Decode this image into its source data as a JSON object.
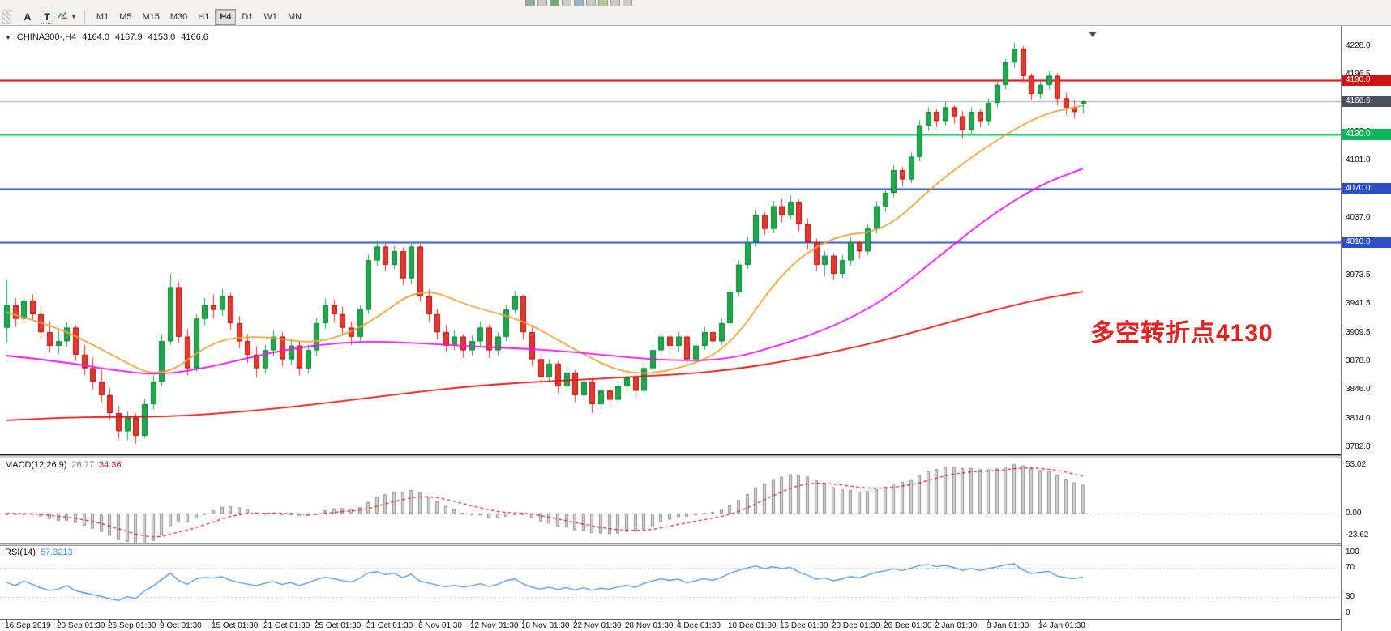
{
  "toolbar": {
    "tools": [
      {
        "label": "A"
      },
      {
        "label": "T"
      }
    ],
    "timeframes": [
      {
        "label": "M1",
        "active": false
      },
      {
        "label": "M5",
        "active": false
      },
      {
        "label": "M15",
        "active": false
      },
      {
        "label": "M30",
        "active": false
      },
      {
        "label": "H1",
        "active": false
      },
      {
        "label": "H4",
        "active": true
      },
      {
        "label": "D1",
        "active": false
      },
      {
        "label": "W1",
        "active": false
      },
      {
        "label": "MN",
        "active": false
      }
    ]
  },
  "chart": {
    "title": {
      "expander": "▼",
      "symbol_period": "CHINA300-,H4",
      "open": "4164.0",
      "high": "4167.9",
      "low": "4153.0",
      "close": "4166.6"
    },
    "annotation": {
      "text": "多空转折点4130",
      "color": "#e32222"
    }
  },
  "macd_panel": {
    "label": "MACD(12,26,9)",
    "main_value": "26.77",
    "signal_value": "34.36"
  },
  "rsi_panel": {
    "label": "RSI(14)",
    "value": "57.3213"
  },
  "chart_data": {
    "type": "candlestick",
    "symbol": "CHINA300-",
    "timeframe": "H4",
    "ylim": [
      3775,
      4247
    ],
    "up_color": "#1fa94e",
    "up_border": "#0c7c34",
    "down_color": "#e8372c",
    "down_border": "#a31515",
    "y_ticks": [
      {
        "label": "4228.0",
        "value": 4228.0
      },
      {
        "label": "4196.5",
        "value": 4196.5
      },
      {
        "label": "4165.0",
        "value": 4165.0
      },
      {
        "label": "4133.0",
        "value": 4133.0
      },
      {
        "label": "4101.0",
        "value": 4101.0
      },
      {
        "label": "4069.0",
        "value": 4069.0
      },
      {
        "label": "4037.0",
        "value": 4037.0
      },
      {
        "label": "4005.5",
        "value": 4005.5
      },
      {
        "label": "3973.5",
        "value": 3973.5
      },
      {
        "label": "3941.5",
        "value": 3941.5
      },
      {
        "label": "3909.5",
        "value": 3909.5
      },
      {
        "label": "3878.0",
        "value": 3878.0
      },
      {
        "label": "3846.0",
        "value": 3846.0
      },
      {
        "label": "3814.0",
        "value": 3814.0
      },
      {
        "label": "3782.0",
        "value": 3782.0
      }
    ],
    "hlines": [
      {
        "price": 4190.0,
        "color": "#d40000",
        "width": 2
      },
      {
        "price": 4130.0,
        "color": "#00cf5e",
        "width": 2
      },
      {
        "price": 4070.0,
        "color": "#2d50c8",
        "width": 2
      },
      {
        "price": 4010.0,
        "color": "#2d50c8",
        "width": 2
      }
    ],
    "current_price": {
      "price": 4166.6,
      "label": "4166.6",
      "line_color": "#9aa8b8",
      "badge_color": "#49525c"
    },
    "badges": [
      {
        "label": "4190.0",
        "value": 4190.0,
        "color": "#cf1212"
      },
      {
        "label": "4130.0",
        "value": 4130.0,
        "color": "#0bb65a"
      },
      {
        "label": "4070.0",
        "value": 4070.0,
        "color": "#2d50c8"
      },
      {
        "label": "4010.0",
        "value": 4010.0,
        "color": "#2d50c8"
      },
      {
        "label": "4166.6",
        "value": 4166.6,
        "color": "#49525c"
      }
    ],
    "x_labels": [
      {
        "index": 0,
        "label": "16 Sep 2019"
      },
      {
        "index": 6,
        "label": "20 Sep 01:30"
      },
      {
        "index": 12,
        "label": "26 Sep 01:30"
      },
      {
        "index": 18,
        "label": "9 Oct 01:30"
      },
      {
        "index": 24,
        "label": "15 Oct 01:30"
      },
      {
        "index": 30,
        "label": "21 Oct 01:30"
      },
      {
        "index": 36,
        "label": "25 Oct 01:30"
      },
      {
        "index": 42,
        "label": "31 Oct 01:30"
      },
      {
        "index": 48,
        "label": "6 Nov 01:30"
      },
      {
        "index": 54,
        "label": "12 Nov 01:30"
      },
      {
        "index": 60,
        "label": "18 Nov 01:30"
      },
      {
        "index": 66,
        "label": "22 Nov 01:30"
      },
      {
        "index": 72,
        "label": "28 Nov 01:30"
      },
      {
        "index": 78,
        "label": "4 Dec 01:30"
      },
      {
        "index": 84,
        "label": "10 Dec 01:30"
      },
      {
        "index": 90,
        "label": "16 Dec 01:30"
      },
      {
        "index": 96,
        "label": "20 Dec 01:30"
      },
      {
        "index": 102,
        "label": "26 Dec 01:30"
      },
      {
        "index": 108,
        "label": "2 Jan 01:30"
      },
      {
        "index": 114,
        "label": "8 Jan 01:30"
      },
      {
        "index": 120,
        "label": "14 Jan 01:30"
      }
    ],
    "ohlc": [
      [
        3915,
        3968,
        3898,
        3940
      ],
      [
        3940,
        3948,
        3916,
        3925
      ],
      [
        3925,
        3950,
        3920,
        3945
      ],
      [
        3945,
        3952,
        3924,
        3930
      ],
      [
        3930,
        3938,
        3902,
        3910
      ],
      [
        3910,
        3922,
        3888,
        3895
      ],
      [
        3895,
        3912,
        3886,
        3900
      ],
      [
        3900,
        3921,
        3894,
        3915
      ],
      [
        3915,
        3918,
        3878,
        3885
      ],
      [
        3885,
        3896,
        3862,
        3870
      ],
      [
        3870,
        3882,
        3846,
        3855
      ],
      [
        3855,
        3868,
        3832,
        3840
      ],
      [
        3840,
        3848,
        3812,
        3820
      ],
      [
        3820,
        3828,
        3792,
        3800
      ],
      [
        3800,
        3822,
        3790,
        3815
      ],
      [
        3815,
        3820,
        3786,
        3795
      ],
      [
        3795,
        3836,
        3792,
        3830
      ],
      [
        3830,
        3862,
        3824,
        3855
      ],
      [
        3855,
        3908,
        3850,
        3900
      ],
      [
        3900,
        3975,
        3896,
        3960
      ],
      [
        3960,
        3966,
        3898,
        3905
      ],
      [
        3905,
        3914,
        3862,
        3870
      ],
      [
        3870,
        3930,
        3866,
        3925
      ],
      [
        3925,
        3948,
        3918,
        3940
      ],
      [
        3940,
        3952,
        3926,
        3935
      ],
      [
        3935,
        3958,
        3928,
        3950
      ],
      [
        3950,
        3954,
        3912,
        3920
      ],
      [
        3920,
        3928,
        3892,
        3900
      ],
      [
        3900,
        3908,
        3876,
        3885
      ],
      [
        3885,
        3894,
        3860,
        3870
      ],
      [
        3870,
        3896,
        3864,
        3890
      ],
      [
        3890,
        3912,
        3884,
        3905
      ],
      [
        3905,
        3910,
        3872,
        3880
      ],
      [
        3880,
        3902,
        3874,
        3895
      ],
      [
        3895,
        3900,
        3862,
        3870
      ],
      [
        3870,
        3896,
        3864,
        3890
      ],
      [
        3890,
        3926,
        3884,
        3920
      ],
      [
        3920,
        3948,
        3914,
        3940
      ],
      [
        3940,
        3946,
        3922,
        3930
      ],
      [
        3930,
        3938,
        3908,
        3915
      ],
      [
        3915,
        3922,
        3896,
        3905
      ],
      [
        3905,
        3940,
        3900,
        3935
      ],
      [
        3935,
        3996,
        3930,
        3990
      ],
      [
        3990,
        4012,
        3984,
        4005
      ],
      [
        4005,
        4010,
        3978,
        3985
      ],
      [
        3985,
        4006,
        3980,
        4000
      ],
      [
        4000,
        4004,
        3962,
        3970
      ],
      [
        3970,
        4010,
        3964,
        4005
      ],
      [
        4005,
        4008,
        3944,
        3950
      ],
      [
        3950,
        3958,
        3922,
        3930
      ],
      [
        3930,
        3936,
        3902,
        3910
      ],
      [
        3910,
        3918,
        3888,
        3895
      ],
      [
        3895,
        3912,
        3890,
        3905
      ],
      [
        3905,
        3908,
        3882,
        3890
      ],
      [
        3890,
        3906,
        3884,
        3900
      ],
      [
        3900,
        3922,
        3894,
        3915
      ],
      [
        3915,
        3918,
        3882,
        3890
      ],
      [
        3890,
        3910,
        3884,
        3905
      ],
      [
        3905,
        3940,
        3900,
        3935
      ],
      [
        3935,
        3956,
        3930,
        3950
      ],
      [
        3950,
        3952,
        3902,
        3910
      ],
      [
        3910,
        3916,
        3872,
        3880
      ],
      [
        3880,
        3886,
        3852,
        3860
      ],
      [
        3860,
        3880,
        3854,
        3875
      ],
      [
        3875,
        3878,
        3842,
        3850
      ],
      [
        3850,
        3872,
        3844,
        3865
      ],
      [
        3865,
        3868,
        3832,
        3840
      ],
      [
        3840,
        3860,
        3834,
        3855
      ],
      [
        3855,
        3858,
        3820,
        3830
      ],
      [
        3830,
        3850,
        3824,
        3845
      ],
      [
        3845,
        3848,
        3826,
        3835
      ],
      [
        3835,
        3856,
        3830,
        3850
      ],
      [
        3850,
        3866,
        3844,
        3860
      ],
      [
        3860,
        3862,
        3836,
        3845
      ],
      [
        3845,
        3874,
        3840,
        3870
      ],
      [
        3870,
        3896,
        3864,
        3890
      ],
      [
        3890,
        3910,
        3884,
        3905
      ],
      [
        3905,
        3908,
        3886,
        3895
      ],
      [
        3895,
        3910,
        3888,
        3905
      ],
      [
        3905,
        3906,
        3872,
        3880
      ],
      [
        3880,
        3900,
        3874,
        3895
      ],
      [
        3895,
        3916,
        3890,
        3910
      ],
      [
        3910,
        3912,
        3892,
        3900
      ],
      [
        3900,
        3926,
        3896,
        3920
      ],
      [
        3920,
        3960,
        3916,
        3955
      ],
      [
        3955,
        3990,
        3950,
        3985
      ],
      [
        3985,
        4016,
        3980,
        4010
      ],
      [
        4010,
        4046,
        4005,
        4040
      ],
      [
        4040,
        4044,
        4018,
        4025
      ],
      [
        4025,
        4056,
        4020,
        4050
      ],
      [
        4050,
        4058,
        4032,
        4040
      ],
      [
        4040,
        4062,
        4036,
        4055
      ],
      [
        4055,
        4058,
        4022,
        4030
      ],
      [
        4030,
        4036,
        4002,
        4010
      ],
      [
        4010,
        4014,
        3978,
        3985
      ],
      [
        3985,
        4000,
        3972,
        3995
      ],
      [
        3995,
        3998,
        3968,
        3975
      ],
      [
        3975,
        3996,
        3970,
        3990
      ],
      [
        3990,
        4016,
        3984,
        4010
      ],
      [
        4010,
        4012,
        3992,
        4000
      ],
      [
        4000,
        4030,
        3996,
        4025
      ],
      [
        4025,
        4056,
        4020,
        4050
      ],
      [
        4050,
        4070,
        4044,
        4065
      ],
      [
        4065,
        4096,
        4060,
        4090
      ],
      [
        4090,
        4094,
        4072,
        4080
      ],
      [
        4080,
        4110,
        4076,
        4105
      ],
      [
        4105,
        4146,
        4100,
        4140
      ],
      [
        4140,
        4160,
        4134,
        4155
      ],
      [
        4155,
        4158,
        4138,
        4145
      ],
      [
        4145,
        4166,
        4140,
        4160
      ],
      [
        4160,
        4162,
        4142,
        4150
      ],
      [
        4150,
        4156,
        4126,
        4135
      ],
      [
        4135,
        4160,
        4130,
        4155
      ],
      [
        4155,
        4158,
        4138,
        4145
      ],
      [
        4145,
        4170,
        4140,
        4165
      ],
      [
        4165,
        4190,
        4160,
        4185
      ],
      [
        4185,
        4214,
        4180,
        4210
      ],
      [
        4210,
        4232,
        4204,
        4225
      ],
      [
        4225,
        4228,
        4188,
        4195
      ],
      [
        4195,
        4198,
        4168,
        4175
      ],
      [
        4175,
        4190,
        4170,
        4185
      ],
      [
        4185,
        4200,
        4180,
        4195
      ],
      [
        4195,
        4198,
        4162,
        4170
      ],
      [
        4170,
        4176,
        4152,
        4160
      ],
      [
        4160,
        4168,
        4148,
        4155
      ],
      [
        4164,
        4167.9,
        4153,
        4166.6
      ]
    ],
    "ma_lines": [
      {
        "name": "ma-fast-orange",
        "color": "#e8a33d",
        "anchors": [
          [
            0,
            3932
          ],
          [
            6,
            3916
          ],
          [
            12,
            3886
          ],
          [
            18,
            3856
          ],
          [
            24,
            3902
          ],
          [
            30,
            3906
          ],
          [
            36,
            3896
          ],
          [
            42,
            3918
          ],
          [
            48,
            3962
          ],
          [
            54,
            3938
          ],
          [
            60,
            3924
          ],
          [
            66,
            3890
          ],
          [
            72,
            3862
          ],
          [
            78,
            3868
          ],
          [
            84,
            3892
          ],
          [
            90,
            3978
          ],
          [
            96,
            4018
          ],
          [
            102,
            4022
          ],
          [
            108,
            4076
          ],
          [
            114,
            4118
          ],
          [
            120,
            4152
          ],
          [
            125,
            4162
          ]
        ]
      },
      {
        "name": "ma-medium-magenta",
        "color": "#f010f0",
        "anchors": [
          [
            0,
            3884
          ],
          [
            6,
            3878
          ],
          [
            12,
            3868
          ],
          [
            18,
            3862
          ],
          [
            24,
            3872
          ],
          [
            30,
            3886
          ],
          [
            36,
            3896
          ],
          [
            42,
            3900
          ],
          [
            48,
            3898
          ],
          [
            54,
            3894
          ],
          [
            60,
            3892
          ],
          [
            66,
            3888
          ],
          [
            72,
            3882
          ],
          [
            78,
            3878
          ],
          [
            84,
            3880
          ],
          [
            90,
            3896
          ],
          [
            96,
            3916
          ],
          [
            102,
            3946
          ],
          [
            108,
            3992
          ],
          [
            114,
            4038
          ],
          [
            120,
            4074
          ],
          [
            125,
            4092
          ]
        ]
      },
      {
        "name": "ma-slow-red",
        "color": "#e01414",
        "anchors": [
          [
            0,
            3812
          ],
          [
            6,
            3815
          ],
          [
            12,
            3816
          ],
          [
            18,
            3816
          ],
          [
            24,
            3819
          ],
          [
            30,
            3824
          ],
          [
            36,
            3830
          ],
          [
            42,
            3837
          ],
          [
            48,
            3844
          ],
          [
            54,
            3850
          ],
          [
            60,
            3854
          ],
          [
            66,
            3857
          ],
          [
            72,
            3860
          ],
          [
            78,
            3863
          ],
          [
            84,
            3868
          ],
          [
            90,
            3877
          ],
          [
            96,
            3888
          ],
          [
            102,
            3901
          ],
          [
            108,
            3917
          ],
          [
            114,
            3933
          ],
          [
            120,
            3947
          ],
          [
            125,
            3955
          ]
        ]
      }
    ],
    "macd": {
      "params": [
        12,
        26,
        9
      ],
      "display_main": 26.77,
      "display_signal": 34.36,
      "ylim": [
        -32,
        60
      ],
      "histogram_color": "#d4d4d4",
      "histogram_border": "#8f8f8f",
      "signal_color": "#d42020",
      "scale_ticks": [
        {
          "label": "53.02",
          "value": 53.02
        },
        {
          "label": "0.00",
          "value": 0
        },
        {
          "label": "-23.62",
          "value": -23.62
        }
      ]
    },
    "rsi": {
      "period": 14,
      "display_value": 57.3213,
      "ylim": [
        0,
        100
      ],
      "levels": [
        70,
        30
      ],
      "line_color": "#4a90d9",
      "scale_ticks": [
        {
          "label": "100",
          "value": 100
        },
        {
          "label": "70",
          "value": 70
        },
        {
          "label": "30",
          "value": 30
        },
        {
          "label": "0",
          "value": 0
        }
      ]
    }
  }
}
